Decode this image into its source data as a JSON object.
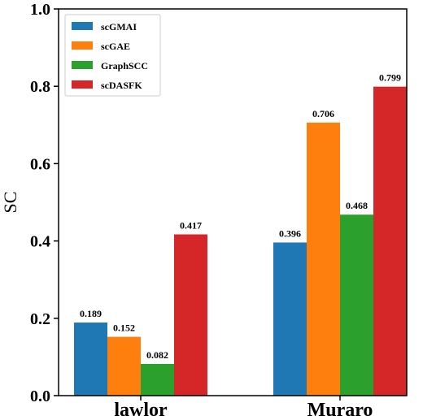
{
  "chart_data": {
    "type": "bar",
    "categories": [
      "lawlor",
      "Muraro"
    ],
    "series": [
      {
        "name": "scGMAI",
        "color": "#1f77b4",
        "values": [
          0.189,
          0.396
        ]
      },
      {
        "name": "scGAE",
        "color": "#ff7f0e",
        "values": [
          0.152,
          0.706
        ]
      },
      {
        "name": "GraphSCC",
        "color": "#2ca02c",
        "values": [
          0.082,
          0.468
        ]
      },
      {
        "name": "scDASFK",
        "color": "#d62728",
        "values": [
          0.417,
          0.799
        ]
      }
    ],
    "data_labels": [
      [
        "0.189",
        "0.396"
      ],
      [
        "0.152",
        "0.706"
      ],
      [
        "0.082",
        "0.468"
      ],
      [
        "0.417",
        "0.799"
      ]
    ],
    "title": "",
    "xlabel": "",
    "ylabel": "SC",
    "ylim": [
      0.0,
      1.0
    ],
    "yticks": [
      "0.0",
      "0.2",
      "0.4",
      "0.6",
      "0.8",
      "1.0"
    ],
    "grid": false,
    "legend_position": "top-left"
  }
}
